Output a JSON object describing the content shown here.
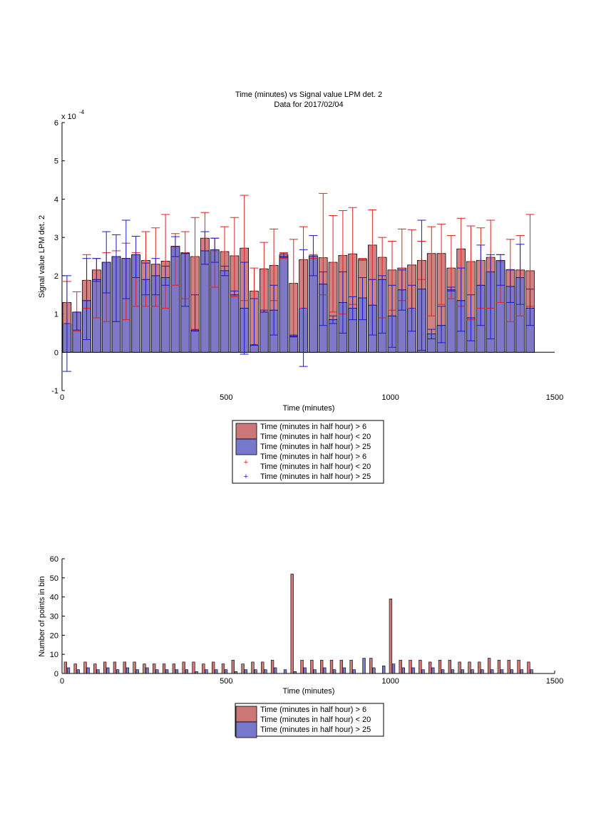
{
  "colors": {
    "red_bar": "#cc7777",
    "blue_bar": "#7777cc",
    "red_err": "#dd2222",
    "blue_err": "#1a1acc"
  },
  "chart_data": [
    {
      "type": "bar",
      "title": "Time (minutes) vs Signal value LPM det. 2",
      "subtitle": "Data for 2017/02/04",
      "xlabel": "Time (minutes)",
      "ylabel": "Signal value LPM det. 2",
      "xlim": [
        0,
        1500
      ],
      "ylim": [
        -1,
        6
      ],
      "y_exponent_label": "x 10",
      "y_exponent_power": "-4",
      "xticks": [
        0,
        500,
        1000,
        1500
      ],
      "yticks": [
        -1,
        0,
        1,
        2,
        3,
        4,
        5,
        6
      ],
      "grid": false,
      "legend_position": "below",
      "legend": [
        "Time (minutes in half hour) > 6",
        "Time (minutes in half hour) < 20",
        "Time (minutes in half hour) > 25",
        "Time (minutes in half hour) > 6",
        "Time (minutes in half hour) < 20",
        "Time (minutes in half hour) > 25"
      ],
      "x": [
        15,
        45,
        75,
        105,
        135,
        165,
        195,
        225,
        255,
        285,
        315,
        345,
        375,
        405,
        435,
        465,
        495,
        525,
        555,
        585,
        615,
        645,
        675,
        705,
        735,
        765,
        795,
        825,
        855,
        885,
        915,
        945,
        975,
        1005,
        1035,
        1065,
        1095,
        1125,
        1155,
        1185,
        1215,
        1245,
        1275,
        1305,
        1335,
        1365,
        1395,
        1425
      ],
      "series": [
        {
          "name": "Time (minutes in half hour) > 6",
          "values": [
            1.3,
            1.05,
            1.88,
            2.15,
            2.35,
            2.5,
            2.45,
            2.55,
            2.4,
            2.3,
            2.38,
            2.75,
            2.6,
            2.5,
            2.98,
            2.65,
            2.63,
            2.52,
            2.72,
            1.6,
            2.18,
            2.27,
            2.55,
            1.8,
            2.42,
            2.5,
            2.47,
            2.35,
            2.53,
            2.57,
            2.43,
            2.8,
            2.48,
            2.15,
            2.2,
            2.28,
            2.4,
            2.58,
            2.58,
            2.2,
            2.7,
            2.37,
            2.4,
            2.48,
            2.37,
            2.16,
            2.15,
            2.13
          ],
          "err_low": [
            0.75,
            0.55,
            1.15,
            0.9,
            0.8,
            0.8,
            0.85,
            1.2,
            1.2,
            1.2,
            1.15,
            1.75,
            1.4,
            0.6,
            2.3,
            1.7,
            2.0,
            1.45,
            1.35,
            0.2,
            1.05,
            1.35,
            2.45,
            0.4,
            1.15,
            2.45,
            1.5,
            1.05,
            1.0,
            1.25,
            2.4,
            1.9,
            0.9,
            1.1,
            1.35,
            1.15,
            1.9,
            0.95,
            1.25,
            1.4,
            1.2,
            0.85,
            1.15,
            1.15,
            1.3,
            0.8,
            0.95,
            1.2
          ],
          "err_high": [
            1.85,
            1.58,
            2.55,
            2.45,
            2.6,
            2.65,
            2.85,
            2.6,
            3.15,
            3.25,
            3.6,
            3.1,
            3.15,
            3.52,
            3.65,
            2.98,
            3.28,
            3.52,
            4.1,
            2.2,
            2.87,
            3.22,
            2.6,
            2.95,
            3.28,
            2.55,
            4.15,
            3.57,
            3.7,
            3.78,
            2.45,
            3.72,
            3.0,
            2.9,
            3.22,
            3.2,
            2.9,
            3.28,
            3.35,
            3.05,
            3.5,
            3.3,
            3.25,
            3.45,
            2.55,
            2.95,
            3.05,
            3.6
          ]
        },
        {
          "name": "Time (minutes in half hour) > 25",
          "values": [
            0.75,
            1.05,
            1.35,
            1.9,
            2.35,
            2.5,
            2.45,
            2.55,
            1.9,
            2.0,
            1.95,
            2.77,
            2.58,
            0.58,
            2.65,
            2.68,
            2.13,
            1.5,
            1.15,
            0.2,
            1.05,
            1.1,
            2.5,
            0.42,
            1.15,
            2.52,
            1.78,
            0.85,
            1.3,
            1.15,
            1.42,
            1.23,
            1.9,
            0.95,
            1.63,
            1.15,
            1.65,
            0.48,
            0.7,
            1.63,
            1.35,
            0.9,
            1.75,
            2.1,
            2.4,
            1.72,
            1.95,
            1.15
          ],
          "err_low": [
            -0.5,
            0.58,
            0.33,
            1.85,
            1.55,
            0.8,
            1.4,
            1.95,
            1.5,
            1.5,
            1.75,
            2.5,
            1.2,
            0.55,
            2.3,
            2.35,
            2.0,
            1.5,
            -0.05,
            0.18,
            1.05,
            0.45,
            2.48,
            0.4,
            -0.37,
            2.0,
            0.7,
            0.75,
            0.5,
            0.85,
            0.85,
            0.45,
            0.5,
            0.13,
            1.1,
            0.55,
            0.05,
            0.35,
            0.25,
            1.6,
            0.55,
            0.3,
            0.7,
            0.35,
            1.75,
            1.3,
            1.25,
            0.7
          ],
          "err_high": [
            2.0,
            1.05,
            2.45,
            2.45,
            3.15,
            3.07,
            3.45,
            3.03,
            2.33,
            2.45,
            2.25,
            3.02,
            2.58,
            1.5,
            3.15,
            2.98,
            2.25,
            1.6,
            2.35,
            1.4,
            1.1,
            1.75,
            2.58,
            0.45,
            2.68,
            3.05,
            2.1,
            0.95,
            2.1,
            1.45,
            1.95,
            1.9,
            2.0,
            1.75,
            2.15,
            1.75,
            3.45,
            0.6,
            1.2,
            1.7,
            2.2,
            1.5,
            2.8,
            2.55,
            2.55,
            2.15,
            2.82,
            1.65
          ]
        }
      ]
    },
    {
      "type": "bar",
      "xlabel": "Time (minutes)",
      "ylabel": "Number of points in bin",
      "xlim": [
        0,
        1500
      ],
      "ylim": [
        0,
        60
      ],
      "xticks": [
        0,
        500,
        1000,
        1500
      ],
      "yticks": [
        0,
        10,
        20,
        30,
        40,
        50,
        60
      ],
      "grid": false,
      "legend_position": "below",
      "legend": [
        "Time (minutes in half hour) > 6",
        "Time (minutes in half hour) < 20",
        "Time (minutes in half hour) > 25"
      ],
      "x": [
        15,
        45,
        75,
        105,
        135,
        165,
        195,
        225,
        255,
        285,
        315,
        345,
        375,
        405,
        435,
        465,
        495,
        525,
        555,
        585,
        615,
        645,
        675,
        705,
        735,
        765,
        795,
        825,
        855,
        885,
        915,
        945,
        975,
        1005,
        1035,
        1065,
        1095,
        1125,
        1155,
        1185,
        1215,
        1245,
        1275,
        1305,
        1335,
        1365,
        1395,
        1425
      ],
      "series": [
        {
          "name": "Time (minutes in half hour) > 6",
          "values": [
            6,
            5,
            6,
            5,
            6,
            6,
            6,
            6,
            5,
            5,
            5,
            5,
            6,
            6,
            5,
            6,
            5,
            7,
            5,
            6,
            6,
            7,
            0,
            52,
            7,
            7,
            7,
            7,
            7,
            7,
            0,
            8,
            0,
            39,
            7,
            7,
            7,
            6,
            7,
            7,
            6,
            6,
            6,
            8,
            7,
            7,
            7,
            6
          ]
        },
        {
          "name": "Time (minutes in half hour) > 25",
          "values": [
            3,
            2,
            3,
            2,
            3,
            2,
            3,
            2,
            3,
            2,
            2,
            2,
            2,
            1,
            2,
            2,
            2,
            1,
            2,
            2,
            2,
            3,
            2,
            1,
            3,
            2,
            3,
            2,
            3,
            2,
            8,
            3,
            4,
            5,
            3,
            3,
            2,
            3,
            2,
            2,
            2,
            2,
            2,
            2,
            2,
            2,
            2,
            2
          ]
        }
      ]
    }
  ]
}
